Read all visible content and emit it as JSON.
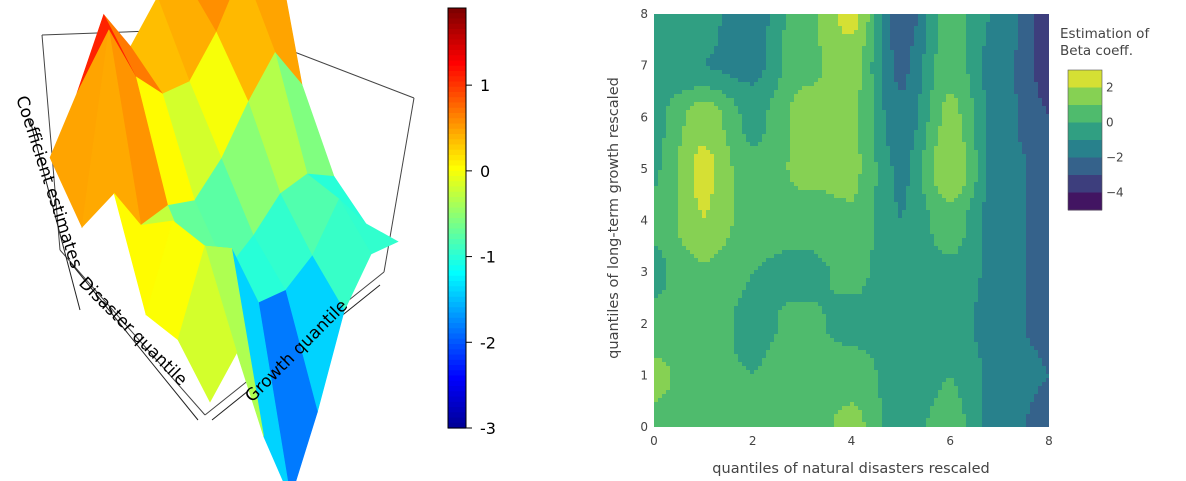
{
  "chart_data": [
    {
      "type": "surface",
      "axis_labels": {
        "z": "Coefficient estimates",
        "x": "Disaster quantile",
        "y": "Growth quantile"
      },
      "colorbar": {
        "ticks": [
          1,
          0,
          -1,
          -2,
          -3
        ],
        "range": [
          -3,
          1.9
        ],
        "colorscale": "jet"
      },
      "surface_values": [
        [
          0.0,
          0.5,
          1.2,
          0.4,
          0.7,
          0.6,
          0.5,
          0.3
        ],
        [
          -0.4,
          1.9,
          0.9,
          0.3,
          0.1,
          0.4,
          0.9,
          1.3
        ],
        [
          0.6,
          -0.2,
          -0.3,
          -0.6,
          -0.4,
          0.0,
          0.3,
          -0.5
        ],
        [
          -0.5,
          0.4,
          -0.8,
          -1.0,
          -0.9,
          -0.7,
          -0.8,
          -1.2
        ],
        [
          -0.3,
          0.6,
          0.2,
          -0.9,
          -1.1,
          -1.0,
          -0.6,
          -1.3
        ],
        [
          -0.6,
          -0.3,
          -1.8,
          -3.0,
          -2.2,
          -1.2,
          -0.8,
          -1.0
        ]
      ]
    },
    {
      "type": "contour",
      "xlabel": "quantiles of natural disasters rescaled",
      "ylabel": "quantiles of long-term growth rescaled",
      "xlim": [
        0,
        8
      ],
      "ylim": [
        0,
        8
      ],
      "xticks": [
        0,
        2,
        4,
        6,
        8
      ],
      "yticks": [
        0,
        1,
        2,
        3,
        4,
        5,
        6,
        7,
        8
      ],
      "legend_title": "Estimation of\nBeta coeff.",
      "colorbar_ticks": [
        2,
        0,
        -2,
        -4
      ],
      "colorscale": "viridis",
      "levels": [
        -5,
        -4,
        -3,
        -2,
        -1,
        0,
        1,
        2,
        3
      ],
      "z_grid_y_rows": [
        [
          0.7,
          0.3,
          0.0,
          0.3,
          1.3,
          -0.5,
          0.4,
          -1.5,
          -2.4
        ],
        [
          1.3,
          0.2,
          0.0,
          0.6,
          0.6,
          -0.6,
          0.0,
          -1.4,
          -2.0
        ],
        [
          0.2,
          0.5,
          -0.3,
          0.3,
          -0.4,
          -0.7,
          -0.3,
          -1.8,
          -2.2
        ],
        [
          -0.2,
          0.9,
          0.0,
          -0.4,
          0.3,
          -0.8,
          -0.2,
          -1.4,
          -2.4
        ],
        [
          0.2,
          2.0,
          0.4,
          0.6,
          0.9,
          -1.0,
          0.6,
          -1.7,
          -2.2
        ],
        [
          -0.1,
          2.3,
          0.2,
          1.2,
          1.2,
          -1.2,
          1.9,
          -1.5,
          -2.4
        ],
        [
          -0.3,
          1.6,
          -0.3,
          1.3,
          1.2,
          -1.8,
          1.3,
          -1.6,
          -3.0
        ],
        [
          -0.6,
          -1.0,
          -1.3,
          0.8,
          1.3,
          -2.2,
          0.6,
          -1.6,
          -3.4
        ],
        [
          -0.9,
          -0.8,
          -1.5,
          0.6,
          2.4,
          -2.8,
          0.4,
          -1.2,
          -3.4
        ]
      ]
    }
  ]
}
